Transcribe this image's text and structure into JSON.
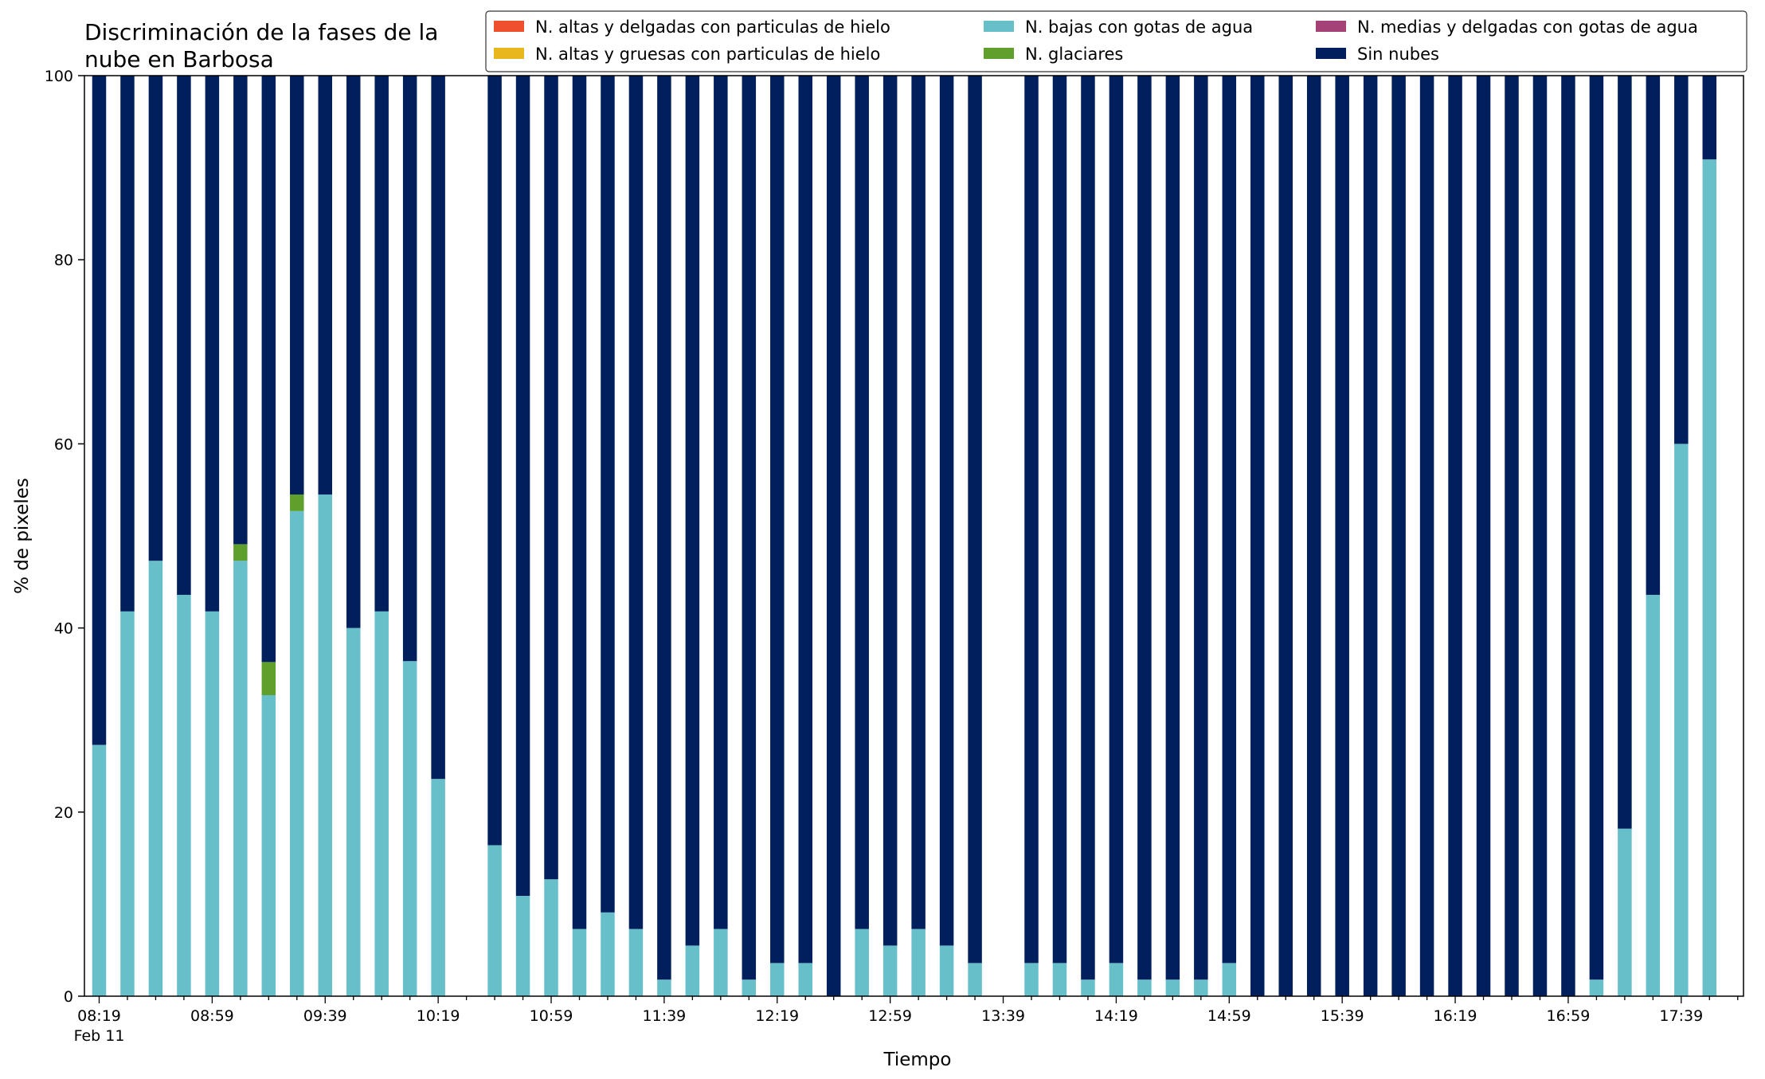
{
  "chart_data": {
    "type": "bar",
    "stacked": true,
    "title_lines": [
      "Discriminación de la fases de la",
      "nube en Barbosa"
    ],
    "xlabel": "Tiempo",
    "ylabel": "% de pixeles",
    "ylim": [
      0,
      100
    ],
    "yticks": [
      0,
      20,
      40,
      60,
      80,
      100
    ],
    "x_start": "08:19",
    "x_step_minutes": 10,
    "x_count": 59,
    "xtick_labels": [
      {
        "x": "08:19",
        "label": "08:19",
        "sublabel": "Feb 11"
      },
      {
        "x": "08:59",
        "label": "08:59"
      },
      {
        "x": "09:39",
        "label": "09:39"
      },
      {
        "x": "10:19",
        "label": "10:19"
      },
      {
        "x": "10:59",
        "label": "10:59"
      },
      {
        "x": "11:39",
        "label": "11:39"
      },
      {
        "x": "12:19",
        "label": "12:19"
      },
      {
        "x": "12:59",
        "label": "12:59"
      },
      {
        "x": "13:39",
        "label": "13:39"
      },
      {
        "x": "14:19",
        "label": "14:19"
      },
      {
        "x": "14:59",
        "label": "14:59"
      },
      {
        "x": "15:39",
        "label": "15:39"
      },
      {
        "x": "16:19",
        "label": "16:19"
      },
      {
        "x": "16:59",
        "label": "16:59"
      },
      {
        "x": "17:39",
        "label": "17:39"
      }
    ],
    "legend": {
      "placement": "top-right",
      "columns": [
        [
          "N. altas y delgadas con particulas de hielo",
          "N. altas y gruesas con particulas de hielo"
        ],
        [
          "N. bajas con gotas de agua",
          "N. glaciares"
        ],
        [
          "N. medias y delgadas con gotas de agua",
          "Sin nubes"
        ]
      ]
    },
    "series": [
      {
        "name": "N. altas y delgadas con particulas de hielo",
        "color": "#f04f2e",
        "values": []
      },
      {
        "name": "N. altas y gruesas con particulas de hielo",
        "color": "#e8b71c",
        "values": []
      },
      {
        "name": "N. medias y delgadas con gotas de agua",
        "color": "#a44277",
        "values": []
      },
      {
        "name": "N. bajas con gotas de agua",
        "color": "#67bfca",
        "values": [
          {
            "x": "08:19",
            "y": 27.3
          },
          {
            "x": "08:29",
            "y": 41.8
          },
          {
            "x": "08:39",
            "y": 47.3
          },
          {
            "x": "08:49",
            "y": 43.6
          },
          {
            "x": "08:59",
            "y": 41.8
          },
          {
            "x": "09:09",
            "y": 47.3
          },
          {
            "x": "09:19",
            "y": 32.7
          },
          {
            "x": "09:29",
            "y": 52.7
          },
          {
            "x": "09:39",
            "y": 54.5
          },
          {
            "x": "09:49",
            "y": 40.0
          },
          {
            "x": "09:59",
            "y": 41.8
          },
          {
            "x": "10:09",
            "y": 36.4
          },
          {
            "x": "10:19",
            "y": 23.6
          },
          {
            "x": "10:39",
            "y": 16.4
          },
          {
            "x": "10:49",
            "y": 10.9
          },
          {
            "x": "10:59",
            "y": 12.7
          },
          {
            "x": "11:09",
            "y": 7.3
          },
          {
            "x": "11:19",
            "y": 9.1
          },
          {
            "x": "11:29",
            "y": 7.3
          },
          {
            "x": "11:39",
            "y": 1.8
          },
          {
            "x": "11:49",
            "y": 5.5
          },
          {
            "x": "11:59",
            "y": 7.3
          },
          {
            "x": "12:09",
            "y": 1.8
          },
          {
            "x": "12:19",
            "y": 3.6
          },
          {
            "x": "12:29",
            "y": 3.6
          },
          {
            "x": "12:39",
            "y": 0
          },
          {
            "x": "12:49",
            "y": 7.3
          },
          {
            "x": "12:59",
            "y": 5.5
          },
          {
            "x": "13:09",
            "y": 7.3
          },
          {
            "x": "13:19",
            "y": 5.5
          },
          {
            "x": "13:29",
            "y": 3.6
          },
          {
            "x": "13:49",
            "y": 3.6
          },
          {
            "x": "13:59",
            "y": 3.6
          },
          {
            "x": "14:09",
            "y": 1.8
          },
          {
            "x": "14:19",
            "y": 3.6
          },
          {
            "x": "14:29",
            "y": 1.8
          },
          {
            "x": "14:39",
            "y": 1.8
          },
          {
            "x": "14:49",
            "y": 1.8
          },
          {
            "x": "14:59",
            "y": 3.6
          },
          {
            "x": "15:09",
            "y": 0
          },
          {
            "x": "15:19",
            "y": 0
          },
          {
            "x": "15:29",
            "y": 0
          },
          {
            "x": "15:39",
            "y": 0
          },
          {
            "x": "15:49",
            "y": 0
          },
          {
            "x": "15:59",
            "y": 0
          },
          {
            "x": "16:09",
            "y": 0
          },
          {
            "x": "16:19",
            "y": 0
          },
          {
            "x": "16:29",
            "y": 0
          },
          {
            "x": "16:39",
            "y": 0
          },
          {
            "x": "16:49",
            "y": 0
          },
          {
            "x": "16:59",
            "y": 0
          },
          {
            "x": "17:09",
            "y": 1.8
          },
          {
            "x": "17:19",
            "y": 18.2
          },
          {
            "x": "17:29",
            "y": 43.6
          },
          {
            "x": "17:39",
            "y": 60.0
          },
          {
            "x": "17:49",
            "y": 90.9
          }
        ]
      },
      {
        "name": "N. glaciares",
        "color": "#5fa02d",
        "values": [
          {
            "x": "09:09",
            "y": 1.8
          },
          {
            "x": "09:19",
            "y": 3.6
          },
          {
            "x": "09:29",
            "y": 1.8
          }
        ]
      },
      {
        "name": "Sin nubes",
        "color": "#001f5c",
        "values": [
          {
            "x": "08:19",
            "y": 72.7
          },
          {
            "x": "08:29",
            "y": 58.2
          },
          {
            "x": "08:39",
            "y": 52.7
          },
          {
            "x": "08:49",
            "y": 56.4
          },
          {
            "x": "08:59",
            "y": 58.2
          },
          {
            "x": "09:09",
            "y": 50.9
          },
          {
            "x": "09:19",
            "y": 63.7
          },
          {
            "x": "09:29",
            "y": 45.5
          },
          {
            "x": "09:39",
            "y": 45.5
          },
          {
            "x": "09:49",
            "y": 60.0
          },
          {
            "x": "09:59",
            "y": 58.2
          },
          {
            "x": "10:09",
            "y": 63.6
          },
          {
            "x": "10:19",
            "y": 76.4
          },
          {
            "x": "10:39",
            "y": 83.6
          },
          {
            "x": "10:49",
            "y": 89.1
          },
          {
            "x": "10:59",
            "y": 87.3
          },
          {
            "x": "11:09",
            "y": 92.7
          },
          {
            "x": "11:19",
            "y": 90.9
          },
          {
            "x": "11:29",
            "y": 92.7
          },
          {
            "x": "11:39",
            "y": 98.2
          },
          {
            "x": "11:49",
            "y": 94.5
          },
          {
            "x": "11:59",
            "y": 92.7
          },
          {
            "x": "12:09",
            "y": 98.2
          },
          {
            "x": "12:19",
            "y": 96.4
          },
          {
            "x": "12:29",
            "y": 96.4
          },
          {
            "x": "12:39",
            "y": 100
          },
          {
            "x": "12:49",
            "y": 92.7
          },
          {
            "x": "12:59",
            "y": 94.5
          },
          {
            "x": "13:09",
            "y": 92.7
          },
          {
            "x": "13:19",
            "y": 94.5
          },
          {
            "x": "13:29",
            "y": 96.4
          },
          {
            "x": "13:49",
            "y": 96.4
          },
          {
            "x": "13:59",
            "y": 96.4
          },
          {
            "x": "14:09",
            "y": 98.2
          },
          {
            "x": "14:19",
            "y": 96.4
          },
          {
            "x": "14:29",
            "y": 98.2
          },
          {
            "x": "14:39",
            "y": 98.2
          },
          {
            "x": "14:49",
            "y": 98.2
          },
          {
            "x": "14:59",
            "y": 96.4
          },
          {
            "x": "15:09",
            "y": 100
          },
          {
            "x": "15:19",
            "y": 100
          },
          {
            "x": "15:29",
            "y": 100
          },
          {
            "x": "15:39",
            "y": 100
          },
          {
            "x": "15:49",
            "y": 100
          },
          {
            "x": "15:59",
            "y": 100
          },
          {
            "x": "16:09",
            "y": 100
          },
          {
            "x": "16:19",
            "y": 100
          },
          {
            "x": "16:29",
            "y": 100
          },
          {
            "x": "16:39",
            "y": 100
          },
          {
            "x": "16:49",
            "y": 100
          },
          {
            "x": "16:59",
            "y": 100
          },
          {
            "x": "17:09",
            "y": 98.2
          },
          {
            "x": "17:19",
            "y": 81.8
          },
          {
            "x": "17:29",
            "y": 56.4
          },
          {
            "x": "17:39",
            "y": 40.0
          },
          {
            "x": "17:49",
            "y": 9.1
          }
        ]
      }
    ],
    "stack_order": [
      "N. bajas con gotas de agua",
      "N. glaciares",
      "Sin nubes"
    ]
  }
}
